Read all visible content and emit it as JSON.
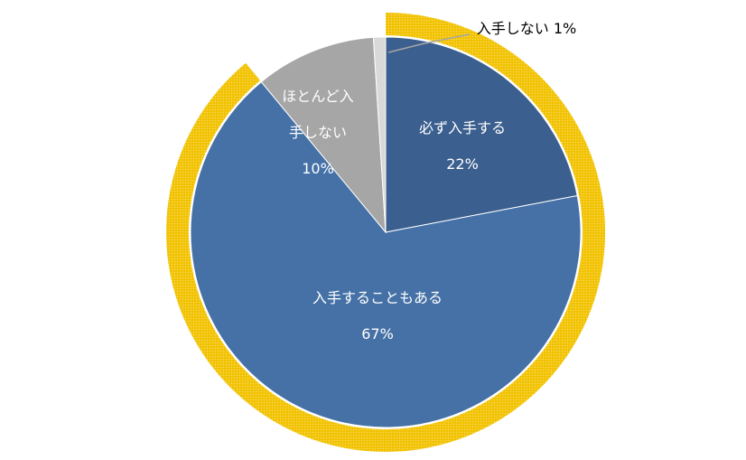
{
  "chart_data": {
    "type": "pie",
    "categories": [
      "必ず入手する",
      "入手することもある",
      "ほとんど入手しない",
      "入手しない"
    ],
    "values": [
      22,
      67,
      10,
      1
    ],
    "value_labels": [
      "22%",
      "67%",
      "10%",
      "1%"
    ],
    "colors": [
      "#3b5f8e",
      "#4571a6",
      "#a6a6a6",
      "#d9d9d9"
    ]
  }
}
